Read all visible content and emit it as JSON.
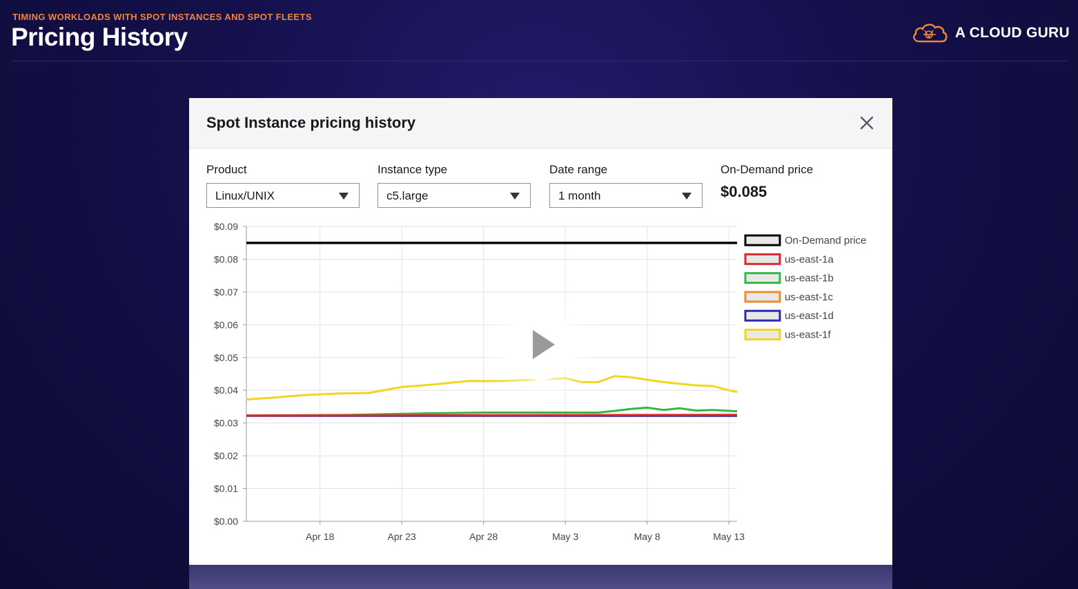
{
  "header": {
    "course_title": "TIMING WORKLOADS WITH SPOT INSTANCES AND SPOT FLEETS",
    "page_title": "Pricing History",
    "brand_name": "A CLOUD GURU",
    "logo_icon": "cloud-logo-icon"
  },
  "modal": {
    "title": "Spot Instance pricing history",
    "close_icon": "close-icon",
    "fields": {
      "product": {
        "label": "Product",
        "value": "Linux/UNIX"
      },
      "instance_type": {
        "label": "Instance type",
        "value": "c5.large"
      },
      "date_range": {
        "label": "Date range",
        "value": "1 month"
      },
      "on_demand": {
        "label": "On-Demand price",
        "value": "$0.085"
      }
    }
  },
  "video": {
    "play_icon": "play-icon"
  },
  "colors": {
    "accent": "#f2843a",
    "background": "#14104a"
  },
  "chart_data": {
    "type": "line",
    "ylim": [
      0,
      0.09
    ],
    "y_ticks": [
      "$0.00",
      "$0.01",
      "$0.02",
      "$0.03",
      "$0.04",
      "$0.05",
      "$0.06",
      "$0.07",
      "$0.08",
      "$0.09"
    ],
    "x_ticks": [
      "Apr 18",
      "Apr 23",
      "Apr 28",
      "May 3",
      "May 8",
      "May 13"
    ],
    "x_range": [
      "Apr 13.5",
      "May 13.5"
    ],
    "grid": true,
    "legend_position": "right",
    "series": [
      {
        "name": "On-Demand price",
        "color": "#000000",
        "x": [
          13.5,
          43.5
        ],
        "y": [
          0.085,
          0.085
        ]
      },
      {
        "name": "us-east-1a",
        "color": "#e0242b",
        "x": [
          13.5,
          43.5
        ],
        "y": [
          0.0323,
          0.0325
        ]
      },
      {
        "name": "us-east-1b",
        "color": "#33b840",
        "x": [
          13.5,
          20,
          25,
          28,
          33,
          35,
          36,
          37,
          38,
          39,
          40,
          41,
          42,
          43.5
        ],
        "y": [
          0.0323,
          0.0325,
          0.033,
          0.0332,
          0.0332,
          0.0332,
          0.0337,
          0.0343,
          0.0347,
          0.034,
          0.0345,
          0.0338,
          0.034,
          0.0336
        ]
      },
      {
        "name": "us-east-1c",
        "color": "#f38a2c",
        "x": [
          13.5,
          43.5
        ],
        "y": [
          0.0323,
          0.0324
        ]
      },
      {
        "name": "us-east-1d",
        "color": "#2b2aa8",
        "x": [
          13.5,
          43.5
        ],
        "y": [
          0.0322,
          0.0322
        ]
      },
      {
        "name": "us-east-1f",
        "color": "#f2d51d",
        "x": [
          13.5,
          15,
          17,
          19,
          21,
          23,
          25,
          27,
          29,
          31,
          33,
          34,
          35,
          36,
          37,
          38,
          39,
          40,
          41,
          42,
          43,
          43.5
        ],
        "y": [
          0.0372,
          0.0377,
          0.0385,
          0.039,
          0.0392,
          0.041,
          0.0418,
          0.0428,
          0.0428,
          0.0432,
          0.0437,
          0.0425,
          0.0425,
          0.0443,
          0.044,
          0.0432,
          0.0425,
          0.042,
          0.0415,
          0.0413,
          0.04,
          0.0395
        ]
      }
    ]
  }
}
